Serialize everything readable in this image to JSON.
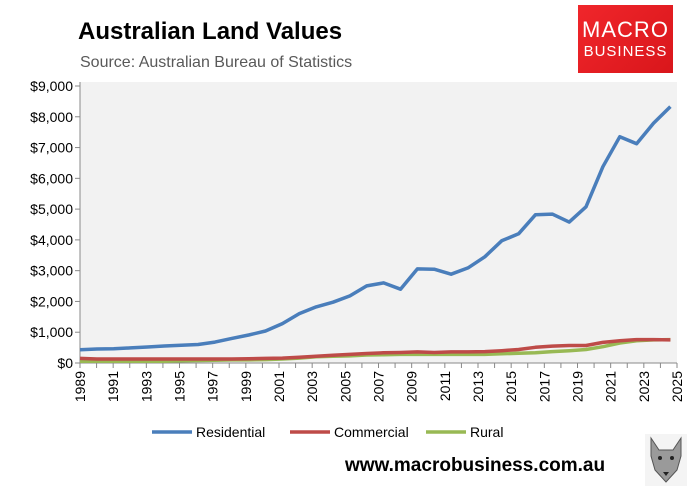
{
  "header": {
    "title": "Australian Land Values",
    "subtitle": "Source: Australian Bureau of Statistics"
  },
  "logo": {
    "line1": "MACRO",
    "line2": "BUSINESS",
    "color": "#e41e24"
  },
  "footer": {
    "website": "www.macrobusiness.com.au",
    "icon": "wolf-head-icon"
  },
  "chart_data": {
    "type": "line",
    "title": "Australian Land Values",
    "xlim": [
      1989,
      2025
    ],
    "ylim": [
      0,
      9000
    ],
    "yticks": [
      0,
      1000,
      2000,
      3000,
      4000,
      5000,
      6000,
      7000,
      8000,
      9000
    ],
    "ytick_labels": [
      "$0",
      "$1,000",
      "$2,000",
      "$3,000",
      "$4,000",
      "$5,000",
      "$6,000",
      "$7,000",
      "$8,000",
      "$9,000"
    ],
    "xticks": [
      1989,
      1991,
      1993,
      1995,
      1997,
      1999,
      2001,
      2003,
      2005,
      2007,
      2009,
      2011,
      2013,
      2015,
      2017,
      2019,
      2021,
      2023,
      2025
    ],
    "grid": false,
    "legend": "bottom",
    "x": [
      1989,
      1990,
      1991,
      1992,
      1993,
      1994,
      1995,
      1996,
      1997,
      1998,
      1999,
      2000,
      2001,
      2002,
      2003,
      2004,
      2005,
      2006,
      2007,
      2008,
      2009,
      2010,
      2011,
      2012,
      2013,
      2014,
      2015,
      2016,
      2017,
      2018,
      2019,
      2020,
      2021,
      2022,
      2023,
      2024
    ],
    "series": [
      {
        "name": "Residential",
        "color": "#4a7ebb",
        "values": [
          430,
          455,
          466,
          490,
          520,
          553,
          575,
          600,
          680,
          800,
          911,
          1041,
          1280,
          1605,
          1822,
          1974,
          2180,
          2505,
          2603,
          2397,
          3059,
          3048,
          2885,
          3091,
          3449,
          3970,
          4197,
          4816,
          4837,
          4577,
          5076,
          6377,
          7354,
          7126,
          7787,
          8330
        ]
      },
      {
        "name": "Commercial",
        "color": "#be4b48",
        "values": [
          150,
          130,
          130,
          130,
          130,
          130,
          130,
          130,
          130,
          130,
          140,
          150,
          160,
          190,
          220,
          250,
          280,
          310,
          330,
          340,
          360,
          340,
          360,
          360,
          370,
          400,
          440,
          510,
          550,
          570,
          570,
          670,
          720,
          760,
          760,
          750
        ]
      },
      {
        "name": "Rural",
        "color": "#98b954",
        "values": [
          60,
          60,
          60,
          60,
          60,
          60,
          70,
          80,
          90,
          100,
          100,
          110,
          130,
          160,
          200,
          220,
          230,
          260,
          270,
          280,
          280,
          280,
          280,
          280,
          280,
          300,
          320,
          330,
          370,
          400,
          440,
          530,
          650,
          720,
          750,
          760
        ]
      }
    ]
  }
}
